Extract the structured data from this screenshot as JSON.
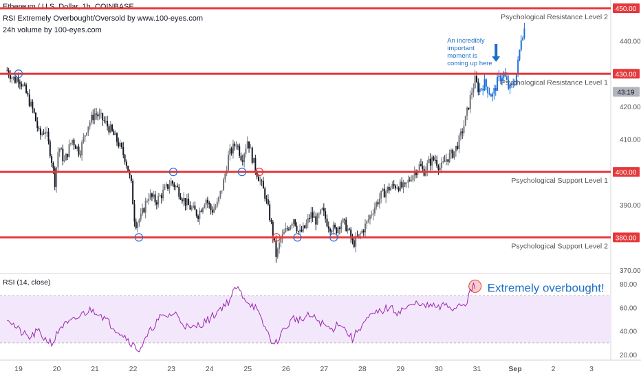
{
  "header": {
    "symbol_line": "Ethereum / U.S. Dollar, 1h, COINBASE",
    "rsi_indicator_line": "RSI Extremely Overbought/Oversold by www.100-eyes.com",
    "volume_line": "24h volume by 100-eyes.com"
  },
  "colors": {
    "bull_candle": "#6f7277",
    "bear_candle": "#131722",
    "highlight_candle": "#1e6fd9",
    "level_line": "#e5383b",
    "rsi_line": "#9c27b0",
    "rsi_band_fill": "#f3e8fb",
    "marker_blue": "#1e6fd9",
    "marker_red": "#e5383b",
    "annotation_blue": "#1c6fc4",
    "axis_text": "#555555"
  },
  "chart_data": [
    {
      "type": "candlestick",
      "instrument": "Ethereum / U.S. Dollar",
      "timeframe": "1h",
      "exchange": "COINBASE",
      "ylim": [
        368,
        452
      ],
      "y_ticks": [
        370,
        380,
        390,
        400,
        410,
        420,
        430,
        440,
        450
      ],
      "y_tick_labels": [
        "370.00",
        "380.00",
        "390.00",
        "400.00",
        "410.00",
        "420.00",
        "430.00",
        "440.00",
        "450.00"
      ],
      "x_day_range": [
        18.7,
        32.5
      ],
      "x_ticks": [
        {
          "day": 19,
          "label": "19"
        },
        {
          "day": 20,
          "label": "20"
        },
        {
          "day": 21,
          "label": "21"
        },
        {
          "day": 22,
          "label": "22"
        },
        {
          "day": 23,
          "label": "23"
        },
        {
          "day": 24,
          "label": "24"
        },
        {
          "day": 25,
          "label": "25"
        },
        {
          "day": 26,
          "label": "26"
        },
        {
          "day": 27,
          "label": "27"
        },
        {
          "day": 28,
          "label": "28"
        },
        {
          "day": 29,
          "label": "29"
        },
        {
          "day": 30,
          "label": "30"
        },
        {
          "day": 31,
          "label": "31"
        },
        {
          "day": 32,
          "label": "Sep"
        },
        {
          "day": 33,
          "label": "2"
        },
        {
          "day": 34,
          "label": "3"
        }
      ],
      "price_anchors": [
        [
          18.7,
          431
        ],
        [
          18.9,
          428
        ],
        [
          19.0,
          429
        ],
        [
          19.2,
          424
        ],
        [
          19.4,
          418
        ],
        [
          19.55,
          411
        ],
        [
          19.7,
          413
        ],
        [
          19.85,
          405
        ],
        [
          19.95,
          397
        ],
        [
          20.05,
          408
        ],
        [
          20.2,
          403
        ],
        [
          20.4,
          410
        ],
        [
          20.6,
          406
        ],
        [
          20.8,
          414
        ],
        [
          21.0,
          418
        ],
        [
          21.2,
          416
        ],
        [
          21.4,
          413
        ],
        [
          21.6,
          409
        ],
        [
          21.8,
          404
        ],
        [
          21.95,
          396
        ],
        [
          22.05,
          384
        ],
        [
          22.2,
          386
        ],
        [
          22.4,
          393
        ],
        [
          22.6,
          391
        ],
        [
          22.8,
          394
        ],
        [
          23.0,
          397
        ],
        [
          23.15,
          395
        ],
        [
          23.35,
          391
        ],
        [
          23.5,
          389
        ],
        [
          23.7,
          387
        ],
        [
          23.9,
          392
        ],
        [
          24.05,
          388
        ],
        [
          24.2,
          390
        ],
        [
          24.35,
          396
        ],
        [
          24.5,
          405
        ],
        [
          24.7,
          409
        ],
        [
          24.85,
          404
        ],
        [
          25.0,
          410
        ],
        [
          25.1,
          405
        ],
        [
          25.2,
          401
        ],
        [
          25.3,
          398
        ],
        [
          25.45,
          393
        ],
        [
          25.6,
          385
        ],
        [
          25.75,
          374
        ],
        [
          25.85,
          379
        ],
        [
          26.0,
          382
        ],
        [
          26.2,
          386
        ],
        [
          26.35,
          381
        ],
        [
          26.5,
          383
        ],
        [
          26.65,
          387
        ],
        [
          26.8,
          385
        ],
        [
          26.95,
          388
        ],
        [
          27.1,
          384
        ],
        [
          27.3,
          382
        ],
        [
          27.45,
          385
        ],
        [
          27.6,
          383
        ],
        [
          27.75,
          378
        ],
        [
          27.9,
          380
        ],
        [
          28.1,
          384
        ],
        [
          28.3,
          389
        ],
        [
          28.5,
          393
        ],
        [
          28.7,
          395
        ],
        [
          28.9,
          396
        ],
        [
          29.1,
          395
        ],
        [
          29.3,
          399
        ],
        [
          29.5,
          402
        ],
        [
          29.6,
          400
        ],
        [
          29.75,
          403
        ],
        [
          29.9,
          404
        ],
        [
          30.05,
          401
        ],
        [
          30.2,
          404
        ],
        [
          30.4,
          406
        ],
        [
          30.55,
          410
        ],
        [
          30.7,
          416
        ],
        [
          30.85,
          424
        ],
        [
          30.95,
          428
        ],
        [
          31.05,
          425
        ],
        [
          31.2,
          427
        ],
        [
          31.4,
          423
        ],
        [
          31.55,
          428
        ],
        [
          31.7,
          430
        ],
        [
          31.85,
          425
        ],
        [
          32.0,
          428
        ],
        [
          32.1,
          435
        ],
        [
          32.15,
          441
        ],
        [
          32.25,
          444
        ]
      ],
      "highlight_start_day": 31.05,
      "horizontal_levels": [
        {
          "price": 450,
          "label": "Psychological Resistance Level 2"
        },
        {
          "price": 430,
          "label": "Psychological Resistance Level 1"
        },
        {
          "price": 400,
          "label": "Psychological Support Level 1"
        },
        {
          "price": 380,
          "label": "Psychological Support Level 2"
        }
      ],
      "current_price_tag": "43:19",
      "current_price": 423,
      "markers": [
        {
          "day": 19.0,
          "price": 430,
          "color": "blue"
        },
        {
          "day": 22.15,
          "price": 380,
          "color": "blue"
        },
        {
          "day": 23.05,
          "price": 400,
          "color": "blue"
        },
        {
          "day": 24.85,
          "price": 400,
          "color": "blue"
        },
        {
          "day": 25.3,
          "price": 400,
          "color": "red"
        },
        {
          "day": 25.75,
          "price": 380,
          "color": "red"
        },
        {
          "day": 26.3,
          "price": 380,
          "color": "blue"
        },
        {
          "day": 27.25,
          "price": 380,
          "color": "blue"
        }
      ],
      "annotation": {
        "lines": [
          "An incredibly",
          "important",
          "moment is",
          "coming up here"
        ],
        "arrow_day": 31.5,
        "arrow_price": 432
      }
    },
    {
      "type": "line",
      "title": "RSI (14, close)",
      "ylim": [
        15,
        86
      ],
      "y_ticks": [
        20,
        40,
        60,
        80
      ],
      "y_tick_labels": [
        "20.00",
        "40.00",
        "60.00",
        "80.00"
      ],
      "band": [
        30,
        70
      ],
      "rsi_anchors": [
        [
          18.7,
          52
        ],
        [
          18.9,
          44
        ],
        [
          19.1,
          38
        ],
        [
          19.3,
          34
        ],
        [
          19.5,
          40
        ],
        [
          19.7,
          33
        ],
        [
          19.9,
          30
        ],
        [
          20.1,
          44
        ],
        [
          20.3,
          46
        ],
        [
          20.5,
          50
        ],
        [
          20.7,
          55
        ],
        [
          20.9,
          58
        ],
        [
          21.1,
          56
        ],
        [
          21.3,
          49
        ],
        [
          21.5,
          43
        ],
        [
          21.7,
          38
        ],
        [
          21.9,
          32
        ],
        [
          22.0,
          28
        ],
        [
          22.15,
          24
        ],
        [
          22.3,
          31
        ],
        [
          22.5,
          43
        ],
        [
          22.7,
          51
        ],
        [
          22.9,
          53
        ],
        [
          23.1,
          55
        ],
        [
          23.3,
          47
        ],
        [
          23.5,
          41
        ],
        [
          23.7,
          45
        ],
        [
          23.9,
          48
        ],
        [
          24.1,
          53
        ],
        [
          24.3,
          60
        ],
        [
          24.5,
          65
        ],
        [
          24.7,
          77
        ],
        [
          24.8,
          73
        ],
        [
          25.0,
          65
        ],
        [
          25.2,
          60
        ],
        [
          25.35,
          49
        ],
        [
          25.5,
          40
        ],
        [
          25.7,
          27
        ],
        [
          25.85,
          37
        ],
        [
          26.0,
          43
        ],
        [
          26.2,
          51
        ],
        [
          26.4,
          49
        ],
        [
          26.6,
          53
        ],
        [
          26.8,
          50
        ],
        [
          27.0,
          45
        ],
        [
          27.2,
          41
        ],
        [
          27.4,
          48
        ],
        [
          27.6,
          39
        ],
        [
          27.75,
          33
        ],
        [
          27.9,
          42
        ],
        [
          28.1,
          49
        ],
        [
          28.3,
          54
        ],
        [
          28.5,
          57
        ],
        [
          28.7,
          60
        ],
        [
          28.9,
          56
        ],
        [
          29.1,
          59
        ],
        [
          29.3,
          61
        ],
        [
          29.5,
          65
        ],
        [
          29.6,
          60
        ],
        [
          29.8,
          62
        ],
        [
          30.0,
          59
        ],
        [
          30.2,
          63
        ],
        [
          30.4,
          58
        ],
        [
          30.55,
          64
        ],
        [
          30.7,
          63
        ],
        [
          30.8,
          71
        ],
        [
          30.9,
          78
        ],
        [
          30.95,
          75
        ]
      ],
      "overbought_marker_day": 30.95,
      "overbought_label": "Extremely overbought!"
    }
  ]
}
